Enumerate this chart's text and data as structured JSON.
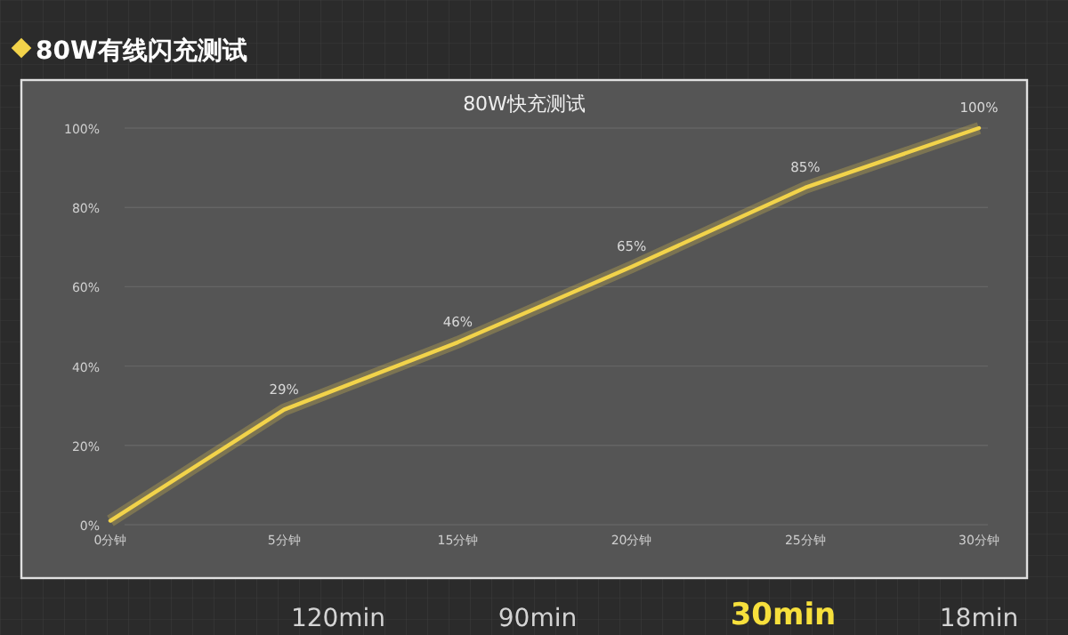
{
  "chart_data": {
    "type": "line",
    "title": "80W有线闪充测试",
    "subtitle": "80W快充测试",
    "categories": [
      "0分钟",
      "5分钟",
      "15分钟",
      "20分钟",
      "25分钟",
      "30分钟"
    ],
    "series": [
      {
        "color": "#f2d34a",
        "values": [
          1,
          29,
          46,
          65,
          85,
          100
        ],
        "value_labels": [
          null,
          "29%",
          "46%",
          "65%",
          "85%",
          "100%"
        ]
      }
    ],
    "ylim": [
      0,
      100
    ],
    "yticks": [
      {
        "value": 0,
        "label": "0%"
      },
      {
        "value": 20,
        "label": "20%"
      },
      {
        "value": 40,
        "label": "40%"
      },
      {
        "value": 60,
        "label": "60%"
      },
      {
        "value": 80,
        "label": "80%"
      },
      {
        "value": 100,
        "label": "100%"
      }
    ],
    "grid": "y",
    "marker": "none",
    "line_style": "solid",
    "annotations": [
      "120min",
      "90min",
      "30min",
      "18min"
    ]
  }
}
